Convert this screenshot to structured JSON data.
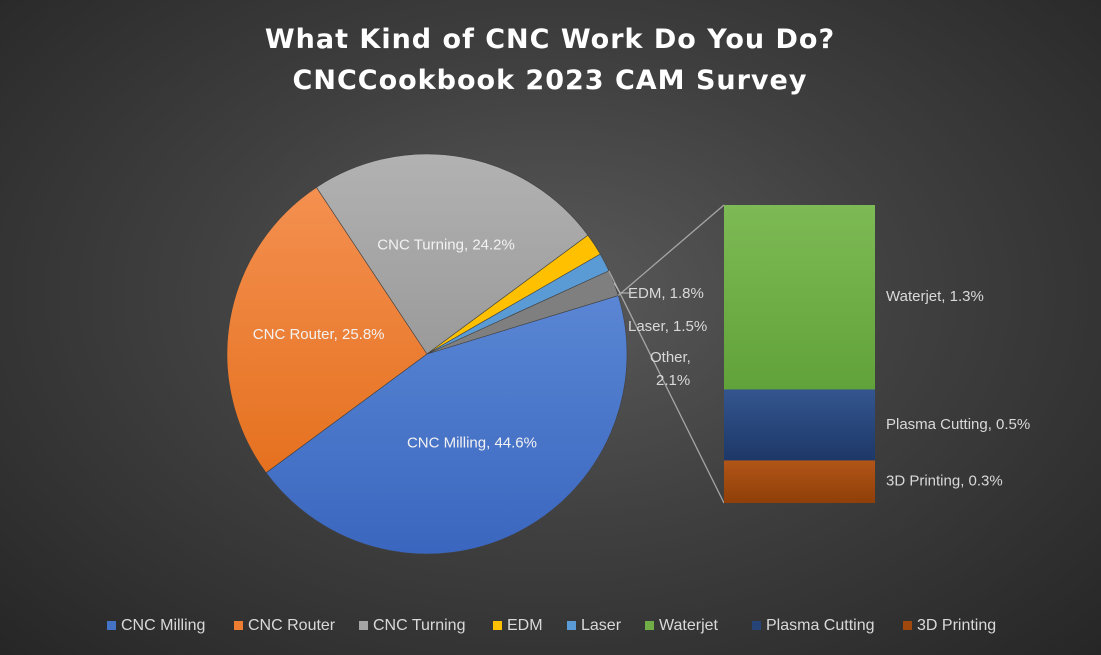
{
  "chart_data": {
    "type": "pie",
    "subtype": "bar-of-pie",
    "title": "What Kind of CNC Work Do You Do?",
    "subtitle": "CNCCookbook 2023 CAM Survey",
    "pie_slices": [
      {
        "name": "CNC Milling",
        "value": 44.6,
        "label": "CNC Milling, 44.6%",
        "color": "#4472c4"
      },
      {
        "name": "CNC Router",
        "value": 25.8,
        "label": "CNC Router, 25.8%",
        "color": "#ed7d31"
      },
      {
        "name": "CNC Turning",
        "value": 24.2,
        "label": "CNC Turning, 24.2%",
        "color": "#a5a5a5"
      },
      {
        "name": "EDM",
        "value": 1.8,
        "label": "EDM, 1.8%",
        "color": "#ffc000"
      },
      {
        "name": "Laser",
        "value": 1.5,
        "label": "Laser, 1.5%",
        "color": "#5b9bd5"
      },
      {
        "name": "Other",
        "value": 2.1,
        "label_line1": "Other,",
        "label_line2": "2.1%",
        "color": "#7f7f7f"
      }
    ],
    "bar_segments": [
      {
        "name": "Waterjet",
        "value": 1.3,
        "label": "Waterjet, 1.3%",
        "color": "#70ad47"
      },
      {
        "name": "Plasma Cutting",
        "value": 0.5,
        "label": "Plasma Cutting, 0.5%",
        "color": "#264478"
      },
      {
        "name": "3D Printing",
        "value": 0.3,
        "label": "3D Printing, 0.3%",
        "color": "#9e480e"
      }
    ],
    "legend": {
      "position": "bottom",
      "entries": [
        {
          "name": "CNC Milling",
          "color": "#4472c4"
        },
        {
          "name": "CNC Router",
          "color": "#ed7d31"
        },
        {
          "name": "CNC Turning",
          "color": "#a5a5a5"
        },
        {
          "name": "EDM",
          "color": "#ffc000"
        },
        {
          "name": "Laser",
          "color": "#5b9bd5"
        },
        {
          "name": "Waterjet",
          "color": "#70ad47"
        },
        {
          "name": "Plasma Cutting",
          "color": "#264478"
        },
        {
          "name": "3D Printing",
          "color": "#9e480e"
        }
      ]
    }
  }
}
